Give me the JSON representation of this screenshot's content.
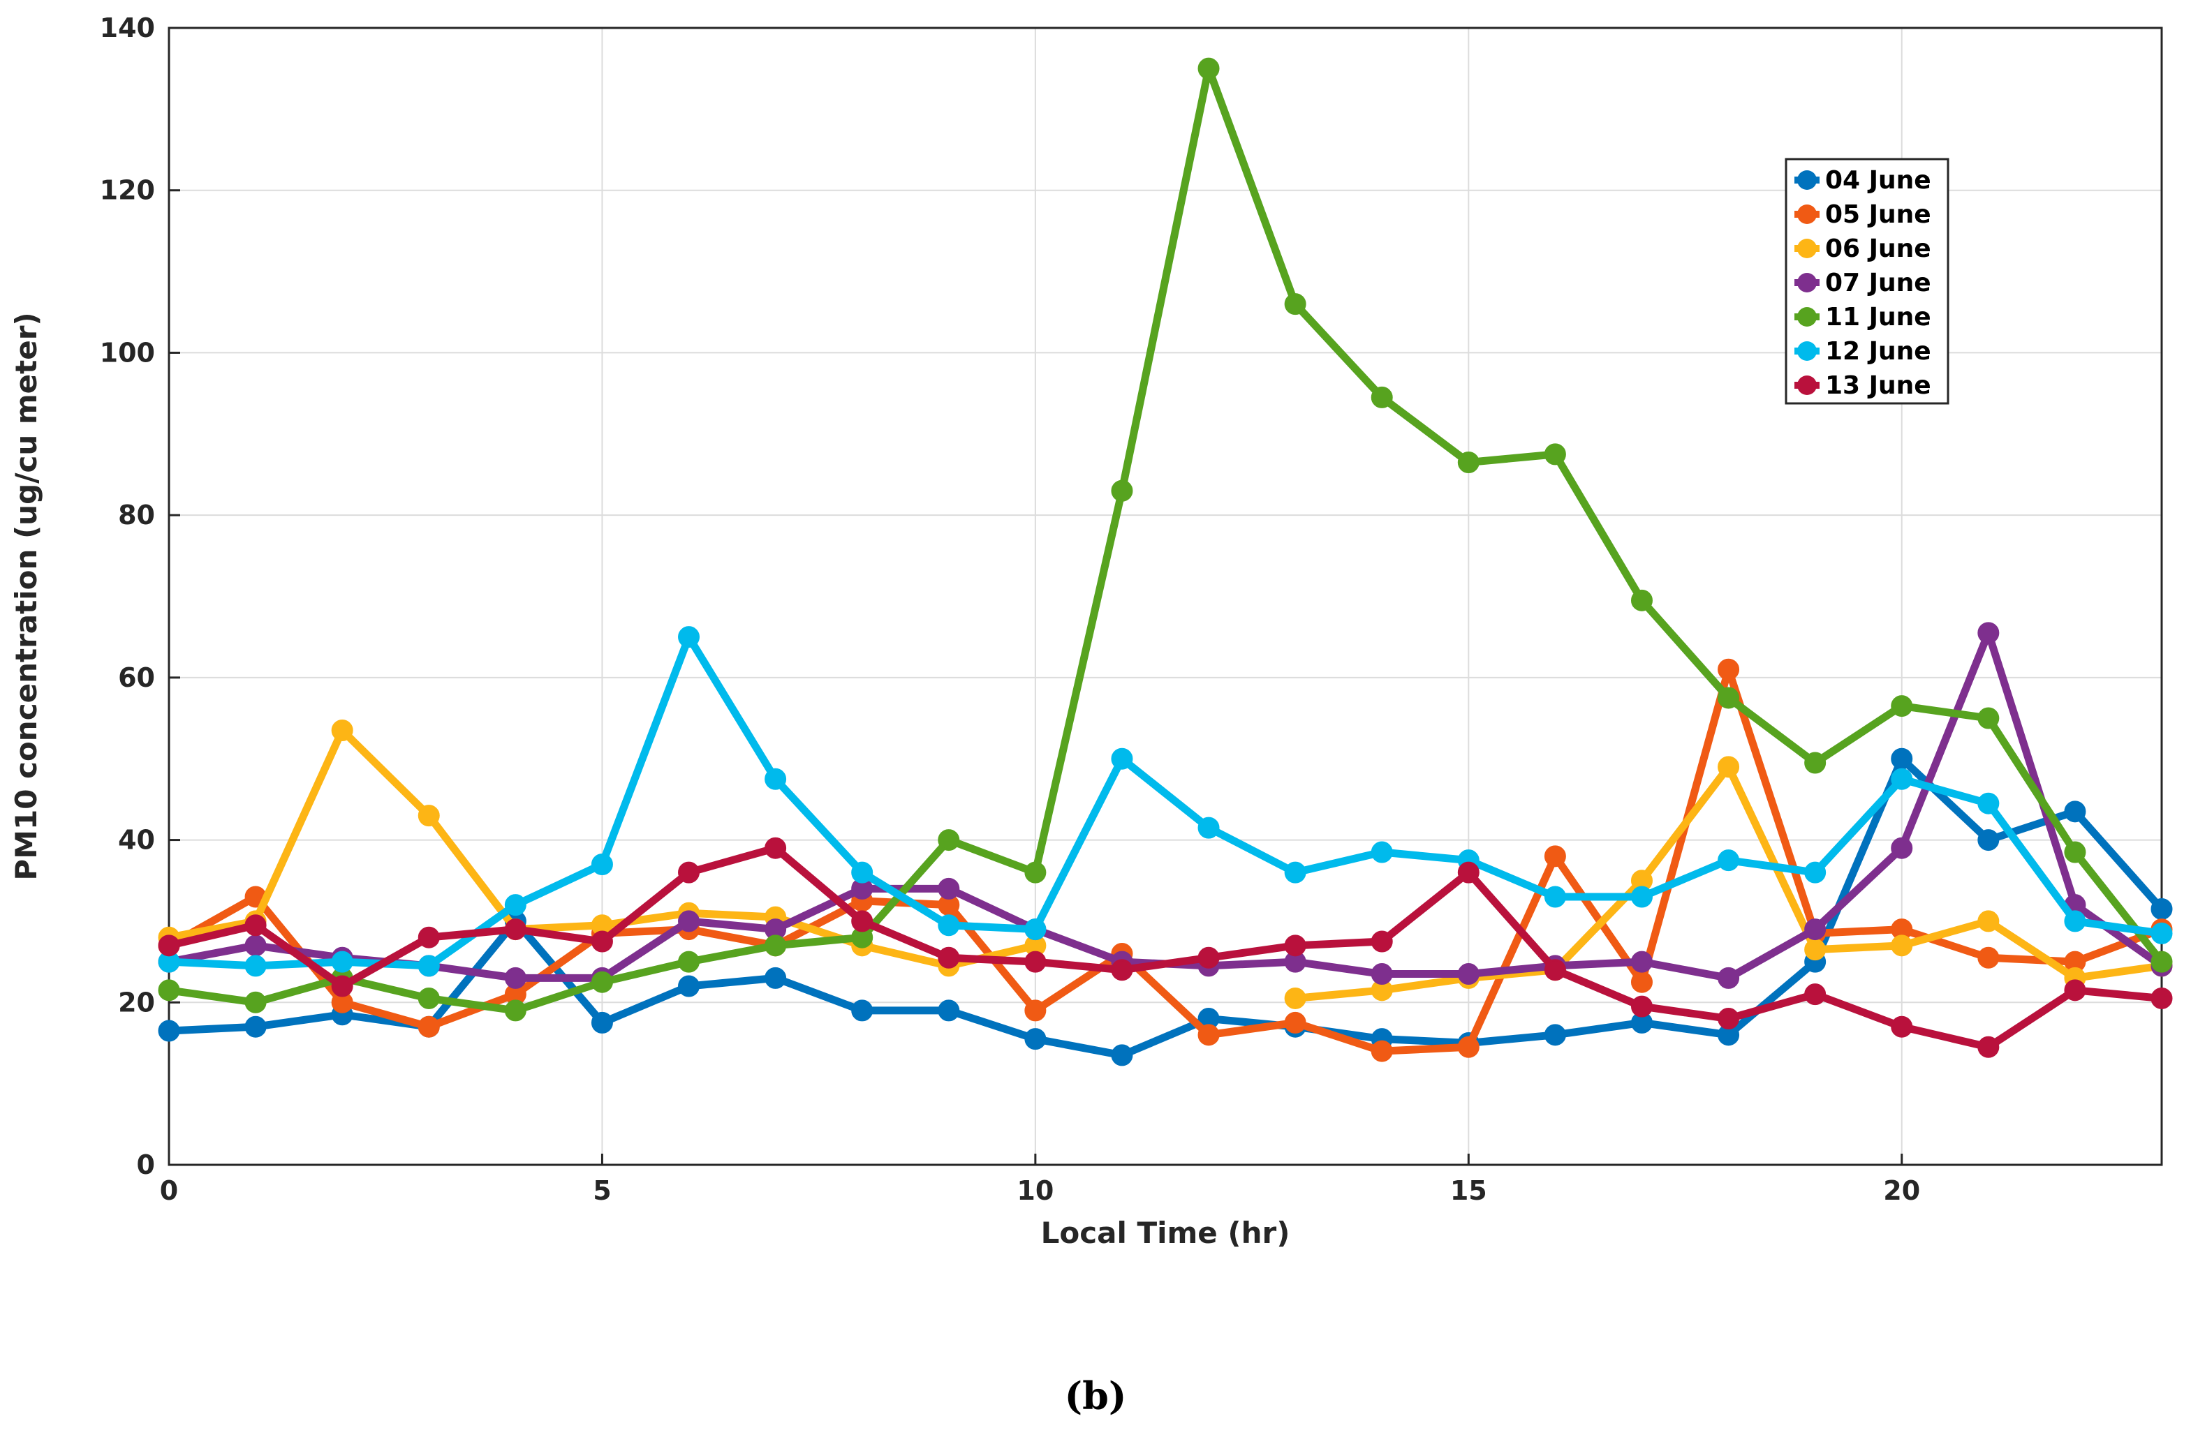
{
  "chart_data": {
    "type": "line",
    "title": "",
    "xlabel": "Local Time (hr)",
    "ylabel": "PM10 concentration (ug/cu meter)",
    "xlim": [
      0,
      23
    ],
    "ylim": [
      0,
      140
    ],
    "xticks": [
      0,
      5,
      10,
      15,
      20
    ],
    "yticks": [
      0,
      20,
      40,
      60,
      80,
      100,
      120,
      140
    ],
    "grid": true,
    "legend_position": "top-right",
    "x": [
      0,
      1,
      2,
      3,
      4,
      5,
      6,
      7,
      8,
      9,
      10,
      11,
      12,
      13,
      14,
      15,
      16,
      17,
      18,
      19,
      20,
      21,
      22,
      23
    ],
    "series": [
      {
        "name": "04 June",
        "color": "#0072BD",
        "values": [
          16.5,
          17,
          18.5,
          17,
          30,
          17.5,
          22,
          23,
          19,
          19,
          15.5,
          13.5,
          18,
          17,
          15.5,
          15,
          16,
          17.5,
          16,
          25,
          50,
          40,
          43.5,
          31.5
        ]
      },
      {
        "name": "05 June",
        "color": "#F05A14",
        "values": [
          27,
          33,
          20,
          17,
          21,
          28.5,
          29,
          27,
          32.5,
          32,
          19,
          26,
          16,
          17.5,
          14,
          14.5,
          38,
          22.5,
          61,
          28.5,
          29,
          25.5,
          25,
          29
        ]
      },
      {
        "name": "06 June",
        "color": "#FDB515",
        "values": [
          28,
          30,
          53.5,
          43,
          29,
          29.5,
          31,
          30.5,
          27,
          24.5,
          27,
          null,
          null,
          20.5,
          21.5,
          23,
          24,
          35,
          49,
          26.5,
          27,
          30,
          23,
          24.5
        ]
      },
      {
        "name": "07 June",
        "color": "#7E2F8E",
        "values": [
          25,
          27,
          25.5,
          24.5,
          23,
          23,
          30,
          29,
          34,
          34,
          29,
          25,
          24.5,
          25,
          23.5,
          23.5,
          24.5,
          25,
          23,
          29,
          39,
          65.5,
          32,
          24.5
        ]
      },
      {
        "name": "11 June",
        "color": "#57A31F",
        "values": [
          21.5,
          20,
          23,
          20.5,
          19,
          22.5,
          25,
          27,
          28,
          40,
          36,
          83,
          135,
          106,
          94.5,
          86.5,
          87.5,
          69.5,
          57.5,
          49.5,
          56.5,
          55,
          38.5,
          25
        ]
      },
      {
        "name": "12 June",
        "color": "#00BAEC",
        "values": [
          25,
          24.5,
          25,
          24.5,
          32,
          37,
          65,
          47.5,
          36,
          29.5,
          29,
          50,
          41.5,
          36,
          38.5,
          37.5,
          33,
          33,
          37.5,
          36,
          47.5,
          44.5,
          30,
          28.5
        ]
      },
      {
        "name": "13 June",
        "color": "#B9113C",
        "values": [
          27,
          29.5,
          22,
          28,
          29,
          27.5,
          36,
          39,
          30,
          25.5,
          25,
          24,
          25.5,
          27,
          27.5,
          36,
          24,
          19.5,
          18,
          21,
          17,
          14.5,
          21.5,
          20.5
        ]
      }
    ]
  },
  "caption": "(b)"
}
